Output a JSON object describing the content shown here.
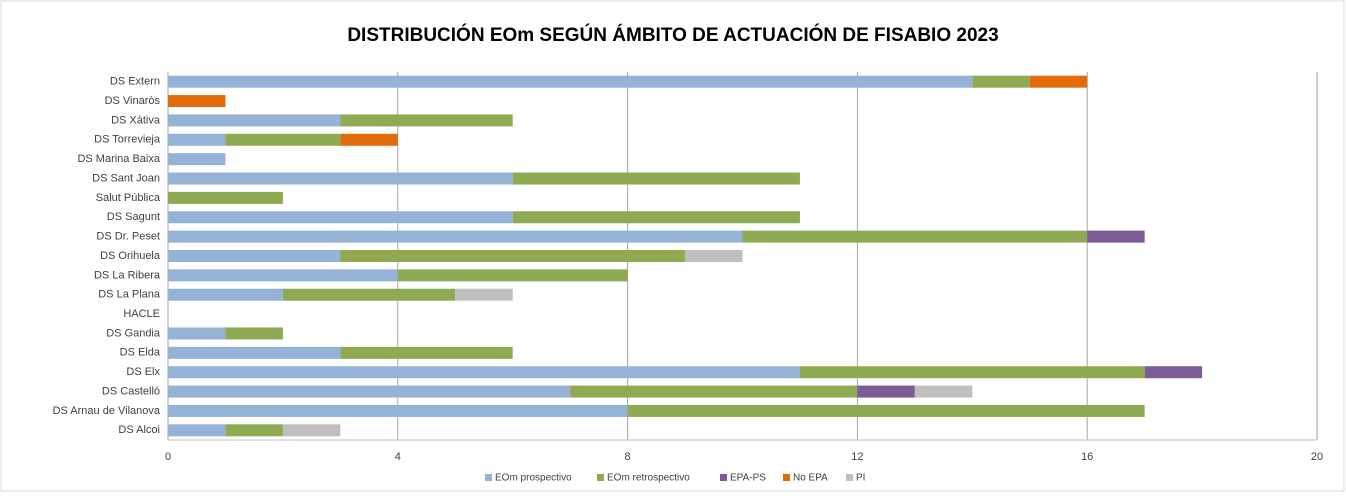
{
  "chart_data": {
    "type": "stacked-barh",
    "title": "DISTRIBUCIÓN EOm SEGÚN ÁMBITO DE ACTUACIÓN DE FISABIO 2023",
    "categories": [
      "DS Extern",
      "DS Vinaròs",
      "DS Xàtiva",
      "DS Torrevieja",
      "DS Marina Baixa",
      "DS Sant Joan",
      "Salut Pública",
      "DS Sagunt",
      "DS Dr. Peset",
      "DS Orihuela",
      "DS La Ribera",
      "DS La Plana",
      "HACLE",
      "DS Gandia",
      "DS Elda",
      "DS Elx",
      "DS Castelló",
      "DS Arnau de Vilanova",
      "DS Alcoi"
    ],
    "series": [
      {
        "name": "EOm prospectivo",
        "color": "#95b3d7",
        "values": [
          14,
          0,
          3,
          1,
          1,
          6,
          0,
          6,
          10,
          3,
          4,
          2,
          0,
          1,
          3,
          11,
          7,
          8,
          1
        ]
      },
      {
        "name": "EOm retrospectivo",
        "color": "#8faa52",
        "values": [
          1,
          0,
          3,
          2,
          0,
          5,
          2,
          5,
          6,
          6,
          4,
          3,
          0,
          1,
          3,
          6,
          5,
          9,
          1
        ]
      },
      {
        "name": "EPA-PS",
        "color": "#7b5c96",
        "values": [
          0,
          0,
          0,
          0,
          0,
          0,
          0,
          0,
          1,
          0,
          0,
          0,
          0,
          0,
          0,
          1,
          1,
          0,
          0
        ]
      },
      {
        "name": "No EPA",
        "color": "#e36c0a",
        "values": [
          1,
          1,
          0,
          1,
          0,
          0,
          0,
          0,
          0,
          0,
          0,
          0,
          0,
          0,
          0,
          0,
          0,
          0,
          0
        ]
      },
      {
        "name": "PI",
        "color": "#bfbfbf",
        "values": [
          0,
          0,
          0,
          0,
          0,
          0,
          0,
          0,
          0,
          1,
          0,
          1,
          0,
          0,
          0,
          0,
          1,
          0,
          1
        ]
      }
    ],
    "xlim": [
      0,
      20
    ],
    "xticks": [
      0,
      4,
      8,
      12,
      16,
      20
    ],
    "grid": true,
    "legend": "bottom"
  }
}
